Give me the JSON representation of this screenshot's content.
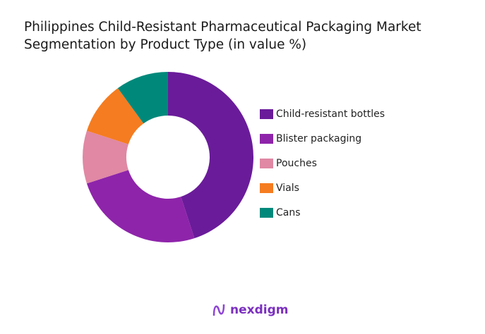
{
  "chart_data": {
    "type": "pie",
    "donut": true,
    "title": "Philippines Child-Resistant Pharmaceutical Packaging Market Segmentation by Product Type (in value %)",
    "categories": [
      "Child-resistant bottles",
      "Blister packaging",
      "Pouches",
      "Vials",
      "Cans"
    ],
    "values": [
      45,
      25,
      10,
      10,
      10
    ],
    "colors": [
      "#6a1b9a",
      "#8e24aa",
      "#e088a4",
      "#f57c20",
      "#00897b"
    ],
    "legend": "right"
  },
  "logo": {
    "text": "nexdigm"
  }
}
